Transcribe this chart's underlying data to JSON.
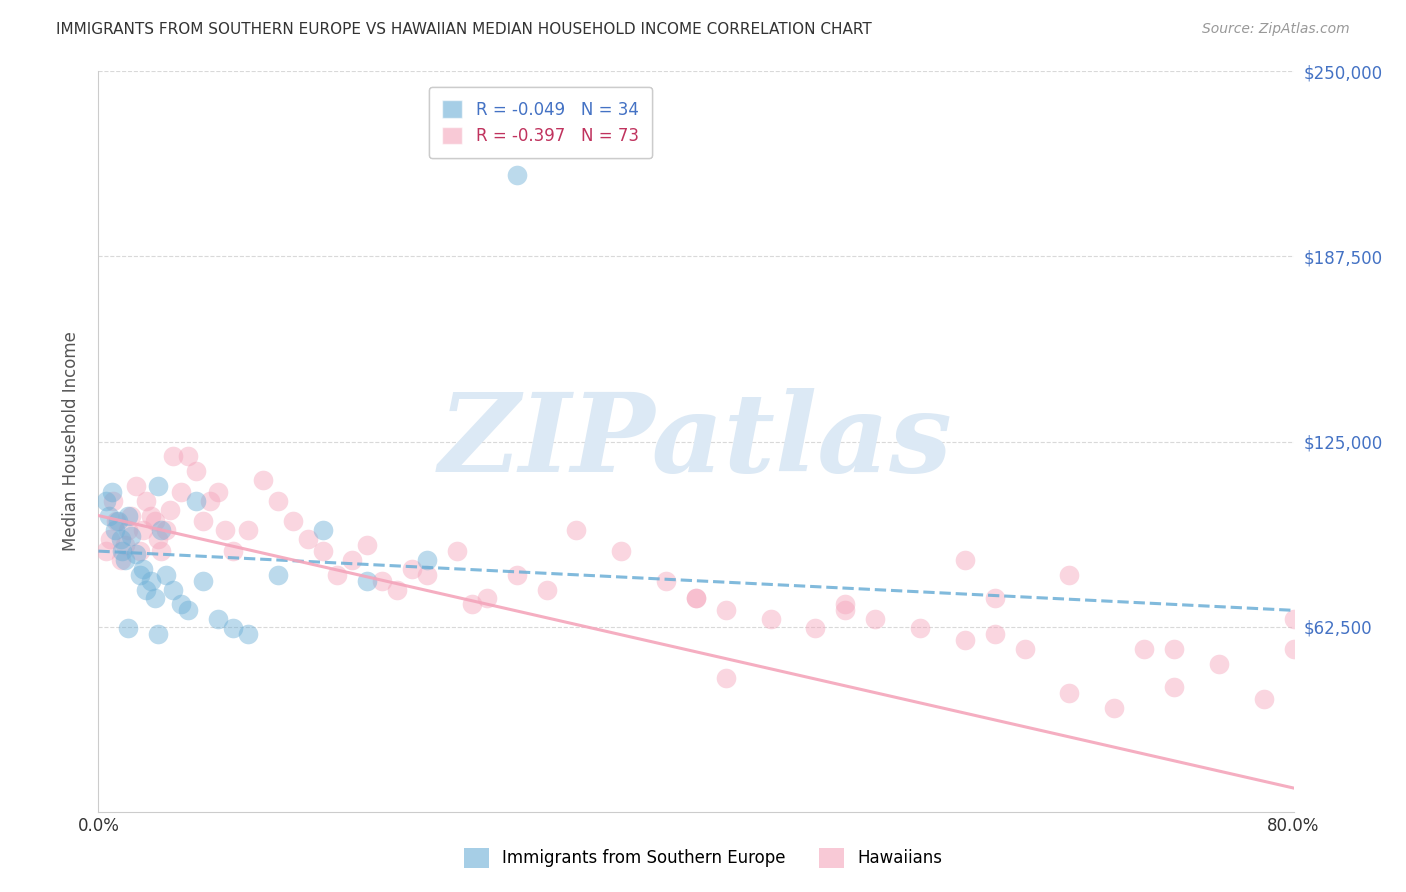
{
  "title": "IMMIGRANTS FROM SOUTHERN EUROPE VS HAWAIIAN MEDIAN HOUSEHOLD INCOME CORRELATION CHART",
  "source": "Source: ZipAtlas.com",
  "ylabel": "Median Household Income",
  "blue_R": -0.049,
  "blue_N": 34,
  "pink_R": -0.397,
  "pink_N": 73,
  "blue_color": "#6baed6",
  "pink_color": "#f4a5bb",
  "blue_label": "Immigrants from Southern Europe",
  "pink_label": "Hawaiians",
  "watermark_color": "#dce9f5",
  "right_label_color": "#4472c4",
  "legend_R_color_blue": "#4472c4",
  "legend_R_color_pink": "#c0335e",
  "grid_color": "#d0d0d0",
  "blue_scatter_x": [
    0.005,
    0.007,
    0.009,
    0.011,
    0.013,
    0.015,
    0.016,
    0.018,
    0.02,
    0.022,
    0.025,
    0.028,
    0.03,
    0.032,
    0.035,
    0.038,
    0.04,
    0.042,
    0.045,
    0.05,
    0.055,
    0.06,
    0.065,
    0.07,
    0.08,
    0.09,
    0.1,
    0.12,
    0.15,
    0.18,
    0.22,
    0.28,
    0.02,
    0.04
  ],
  "blue_scatter_y": [
    105000,
    100000,
    108000,
    95000,
    98000,
    92000,
    88000,
    85000,
    100000,
    93000,
    87000,
    80000,
    82000,
    75000,
    78000,
    72000,
    110000,
    95000,
    80000,
    75000,
    70000,
    68000,
    105000,
    78000,
    65000,
    62000,
    60000,
    80000,
    95000,
    78000,
    85000,
    215000,
    62000,
    60000
  ],
  "pink_scatter_x": [
    0.005,
    0.008,
    0.01,
    0.012,
    0.015,
    0.018,
    0.02,
    0.022,
    0.025,
    0.028,
    0.03,
    0.032,
    0.035,
    0.038,
    0.04,
    0.042,
    0.045,
    0.048,
    0.05,
    0.055,
    0.06,
    0.065,
    0.07,
    0.075,
    0.08,
    0.085,
    0.09,
    0.1,
    0.11,
    0.12,
    0.13,
    0.14,
    0.15,
    0.16,
    0.17,
    0.18,
    0.19,
    0.2,
    0.21,
    0.22,
    0.24,
    0.25,
    0.26,
    0.28,
    0.3,
    0.32,
    0.35,
    0.38,
    0.4,
    0.42,
    0.45,
    0.48,
    0.5,
    0.52,
    0.55,
    0.58,
    0.6,
    0.62,
    0.65,
    0.68,
    0.7,
    0.72,
    0.75,
    0.78,
    0.8,
    0.42,
    0.58,
    0.65,
    0.8,
    0.72,
    0.6,
    0.5,
    0.4
  ],
  "pink_scatter_y": [
    88000,
    92000,
    105000,
    98000,
    85000,
    90000,
    95000,
    100000,
    110000,
    88000,
    95000,
    105000,
    100000,
    98000,
    92000,
    88000,
    95000,
    102000,
    120000,
    108000,
    120000,
    115000,
    98000,
    105000,
    108000,
    95000,
    88000,
    95000,
    112000,
    105000,
    98000,
    92000,
    88000,
    80000,
    85000,
    90000,
    78000,
    75000,
    82000,
    80000,
    88000,
    70000,
    72000,
    80000,
    75000,
    95000,
    88000,
    78000,
    72000,
    68000,
    65000,
    62000,
    70000,
    65000,
    62000,
    58000,
    72000,
    55000,
    40000,
    35000,
    55000,
    42000,
    50000,
    38000,
    55000,
    45000,
    85000,
    80000,
    65000,
    55000,
    60000,
    68000,
    72000
  ],
  "blue_trend_intercept": 88000,
  "blue_trend_slope": -25000,
  "pink_trend_intercept": 100000,
  "pink_trend_slope": -115000,
  "ylim_min": 0,
  "ylim_max": 250000,
  "xlim_min": 0.0,
  "xlim_max": 0.8,
  "ytick_values": [
    62500,
    125000,
    187500,
    250000
  ],
  "ytick_labels": [
    "$62,500",
    "$125,000",
    "$187,500",
    "$250,000"
  ]
}
